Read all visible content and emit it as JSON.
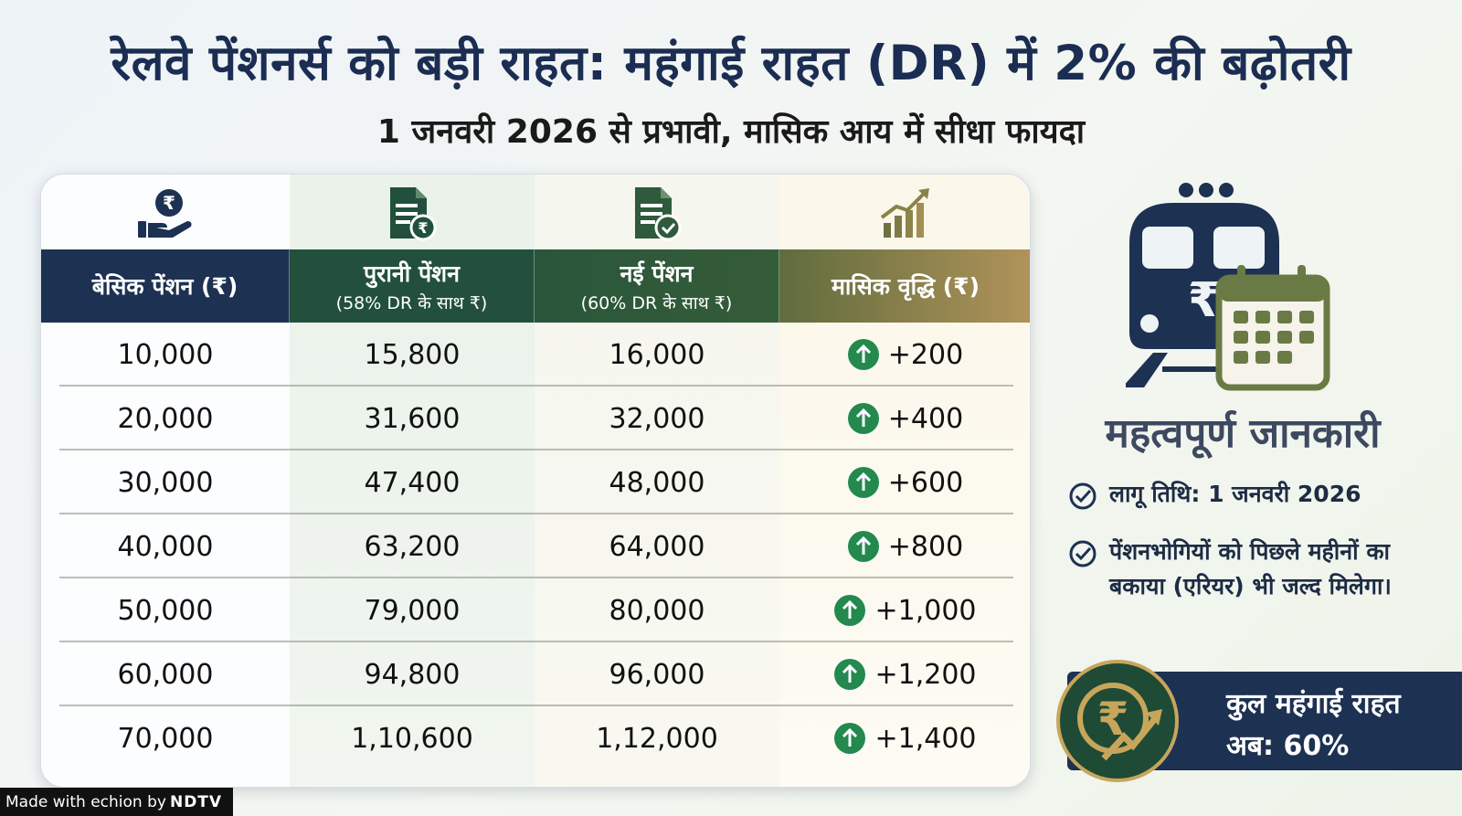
{
  "title": "रेलवे पेंशनर्स को बड़ी राहत: महंगाई राहत (DR) में 2% की बढ़ोतरी",
  "subtitle": "1 जनवरी 2026 से प्रभावी, मासिक आय में सीधा फायदा",
  "table": {
    "icons": [
      "rupee-hand-icon",
      "rupee-document-icon",
      "check-document-icon",
      "growth-chart-icon"
    ],
    "headers": [
      {
        "main": "बेसिक पेंशन (₹)",
        "sub": ""
      },
      {
        "main": "पुरानी पेंशन",
        "sub": "(58% DR के साथ ₹)"
      },
      {
        "main": "नई पेंशन",
        "sub": "(60% DR के साथ ₹)"
      },
      {
        "main": "मासिक वृद्धि (₹)",
        "sub": ""
      }
    ],
    "rows": [
      {
        "basic": "10,000",
        "old": "15,800",
        "new": "16,000",
        "increase": "+200"
      },
      {
        "basic": "20,000",
        "old": "31,600",
        "new": "32,000",
        "increase": "+400"
      },
      {
        "basic": "30,000",
        "old": "47,400",
        "new": "48,000",
        "increase": "+600"
      },
      {
        "basic": "40,000",
        "old": "63,200",
        "new": "64,000",
        "increase": "+800"
      },
      {
        "basic": "50,000",
        "old": "79,000",
        "new": "80,000",
        "increase": "+1,000"
      },
      {
        "basic": "60,000",
        "old": "94,800",
        "new": "96,000",
        "increase": "+1,200"
      },
      {
        "basic": "70,000",
        "old": "1,10,600",
        "new": "1,12,000",
        "increase": "+1,400"
      }
    ]
  },
  "info": {
    "icon": "train-calendar-icon",
    "title": "महत्वपूर्ण जानकारी",
    "items": [
      "लागू तिथि: 1 जनवरी 2026",
      "पेंशनभोगियों को पिछले महीनों का बकाया (एरियर) भी जल्द मिलेगा।"
    ]
  },
  "banner": {
    "line1": "कुल महंगाई राहत",
    "line2": "अब: 60%"
  },
  "footer": {
    "made_with": "Made with",
    "brand": "echion",
    "by": "by",
    "partner": "NDTV"
  },
  "colors": {
    "navy": "#1d3152",
    "green": "#22503c",
    "gold": "#b1935a",
    "up_arrow": "#23894f"
  }
}
